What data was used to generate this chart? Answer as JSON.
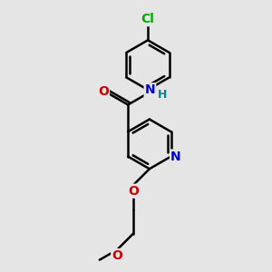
{
  "bg_color": "#e5e5e5",
  "bond_color": "#000000",
  "bond_width": 1.8,
  "atom_colors": {
    "N_amide": "#0000cc",
    "N_pyridine": "#0000cc",
    "O": "#cc0000",
    "Cl": "#00aa00",
    "H_amide": "#008888"
  },
  "font_size": 10,
  "fig_size": [
    3.0,
    3.0
  ],
  "dpi": 100,
  "xlim": [
    0,
    10
  ],
  "ylim": [
    0,
    10
  ]
}
